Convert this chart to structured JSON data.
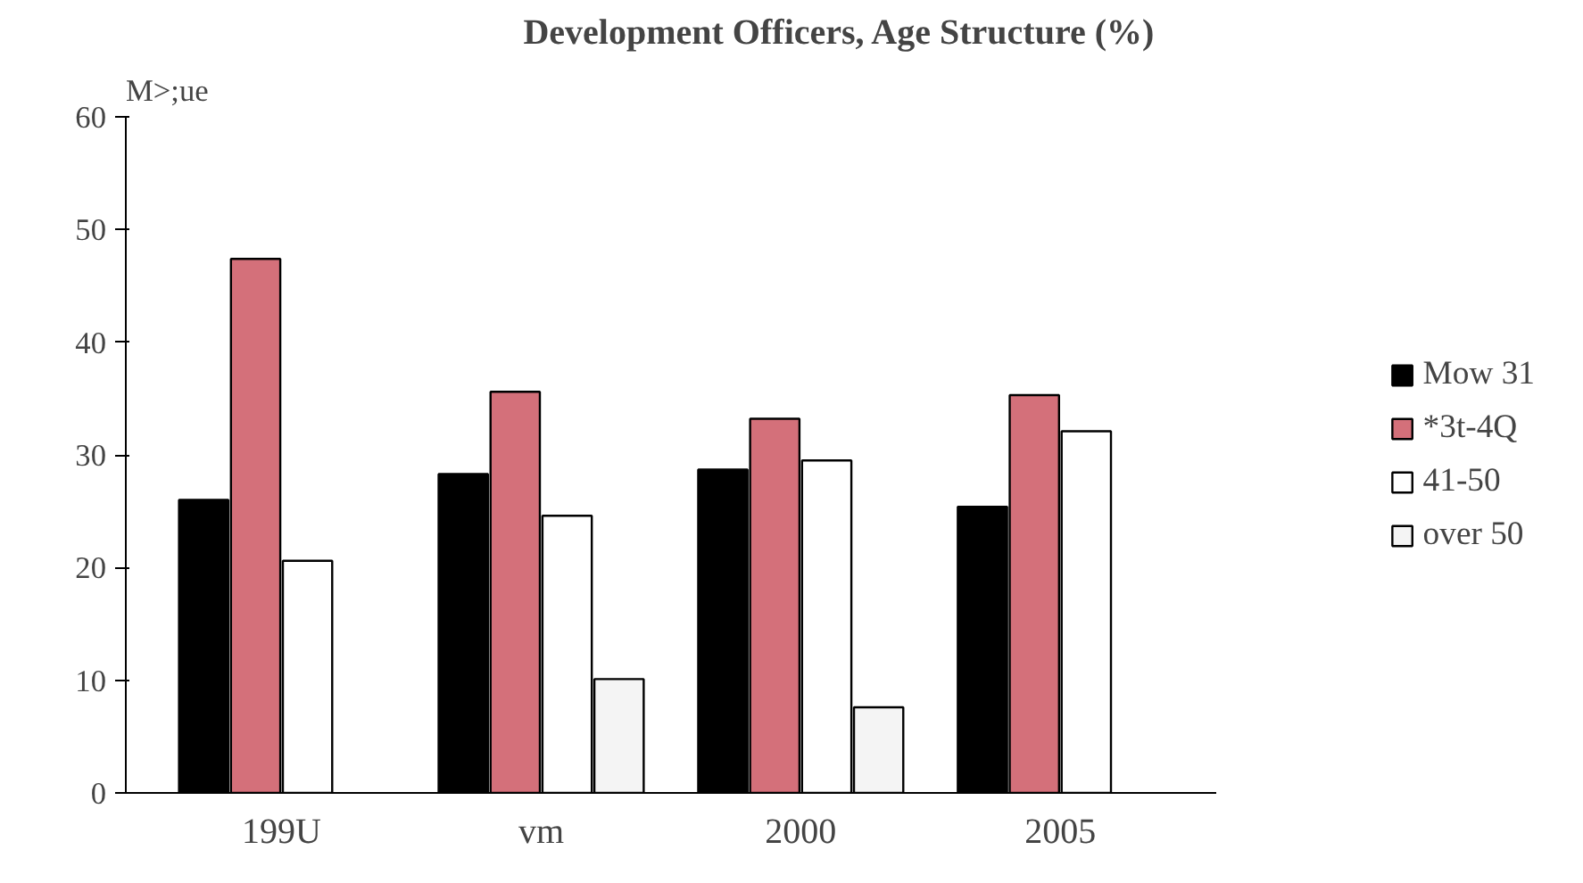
{
  "chart_data": {
    "type": "bar",
    "title": "Development Officers, Age Structure (%)",
    "ylabel": "M>;ue",
    "categories": [
      "199U",
      "vm",
      "2000",
      "2005"
    ],
    "series": [
      {
        "name": "Mow 31",
        "color": "#000000",
        "values": [
          26,
          28.3,
          28.7,
          25.4
        ]
      },
      {
        "name": "*3t-4Q",
        "color": "#d4707a",
        "values": [
          47.4,
          35.6,
          33.2,
          35.3
        ]
      },
      {
        "name": "41-50",
        "color": "#ffffff",
        "values": [
          20.6,
          24.6,
          29.5,
          32.1
        ]
      },
      {
        "name": "over 50",
        "color": "#f4f4f4",
        "values": [
          null,
          10.1,
          7.6,
          null
        ]
      }
    ],
    "ylim": [
      0,
      60
    ],
    "yticks": [
      0,
      10,
      20,
      30,
      40,
      50,
      60
    ],
    "grid": false,
    "legend": "right"
  }
}
